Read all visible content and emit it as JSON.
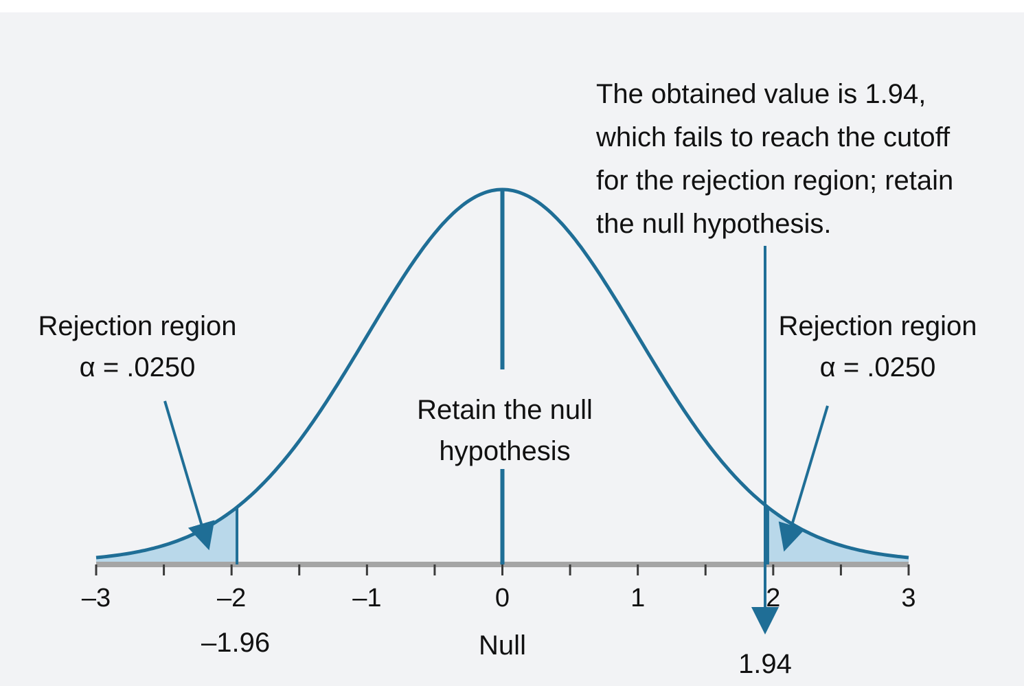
{
  "chart_data": {
    "type": "area",
    "distribution": "standard normal",
    "x_range": [
      -3,
      3
    ],
    "x_ticks": [
      {
        "value": -3,
        "label": "–3"
      },
      {
        "value": -2.5,
        "label": ""
      },
      {
        "value": -2,
        "label": "–2"
      },
      {
        "value": -1.5,
        "label": ""
      },
      {
        "value": -1,
        "label": "–1"
      },
      {
        "value": -0.5,
        "label": ""
      },
      {
        "value": 0,
        "label": "0"
      },
      {
        "value": 0.5,
        "label": ""
      },
      {
        "value": 1,
        "label": "1"
      },
      {
        "value": 1.5,
        "label": ""
      },
      {
        "value": 2,
        "label": "2"
      },
      {
        "value": 2.5,
        "label": ""
      },
      {
        "value": 3,
        "label": "3"
      }
    ],
    "critical_values": [
      -1.96,
      1.96
    ],
    "critical_label_left": "–1.96",
    "obtained_value": 1.94,
    "obtained_label": "1.94",
    "null_value": 0,
    "null_label": "Null",
    "shaded_regions": [
      {
        "from": -3,
        "to": -1.96,
        "alpha": 0.025
      },
      {
        "from": 1.96,
        "to": 3,
        "alpha": 0.025
      }
    ],
    "annotations": {
      "left_region": [
        "Rejection region",
        "α = .0250"
      ],
      "right_region": [
        "Rejection region",
        "α = .0250"
      ],
      "center": [
        "Retain the null",
        "hypothesis"
      ],
      "obtained_note": [
        "The obtained value is 1.94,",
        "which fails to reach the cutoff",
        "for the rejection region; retain",
        "the null hypothesis."
      ]
    }
  },
  "colors": {
    "curve": "#1f6e96",
    "shade": "#b9d8ea",
    "axis": "#a5a5a5",
    "background": "#f2f3f5"
  }
}
